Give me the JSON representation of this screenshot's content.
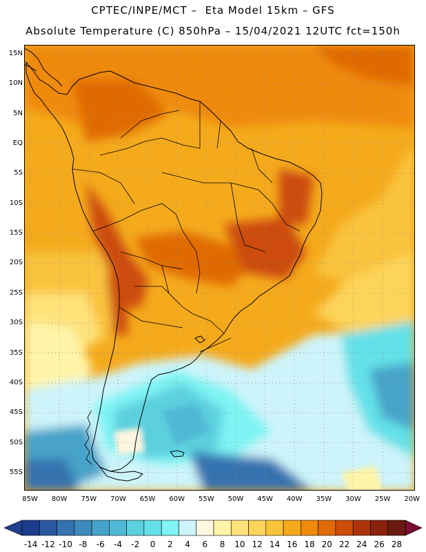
{
  "title": {
    "line1": "CPTEC/INPE/MCT –  Eta Model 15km – GFS",
    "line2": "Absolute Temperature (C) 850hPa – 15/04/2021 12UTC fct=150h"
  },
  "map": {
    "lat_labels": [
      "15N",
      "10N",
      "5N",
      "EQ",
      "5S",
      "10S",
      "15S",
      "20S",
      "25S",
      "30S",
      "35S",
      "40S",
      "45S",
      "50S",
      "55S"
    ],
    "lon_labels": [
      "85W",
      "80W",
      "75W",
      "70W",
      "65W",
      "60W",
      "55W",
      "50W",
      "45W",
      "40W",
      "35W",
      "30W",
      "25W",
      "20W"
    ],
    "lat_range": [
      16.5,
      -58
    ],
    "lon_range": [
      -86,
      -19.5
    ],
    "grid_lines": true
  },
  "colorbar": {
    "labels": [
      "-14",
      "-12",
      "-10",
      "-8",
      "-6",
      "-4",
      "-2",
      "0",
      "2",
      "4",
      "6",
      "8",
      "10",
      "12",
      "14",
      "16",
      "18",
      "20",
      "22",
      "24",
      "26",
      "28"
    ],
    "colors": [
      "#1e3c8c",
      "#2a58a0",
      "#3472b0",
      "#3d8abd",
      "#46a3c9",
      "#4fb9d5",
      "#5cd0df",
      "#64e1e8",
      "#7ef4f4",
      "#cdf4fa",
      "#fff6e0",
      "#fff4a8",
      "#ffe27a",
      "#fdd45a",
      "#f9c33c",
      "#f5aa1c",
      "#ef8a0a",
      "#e06a06",
      "#cc4c08",
      "#ab340a",
      "#8a220c",
      "#6a1a10"
    ],
    "low_color": "#233e8e",
    "high_color": "#7a0c30"
  }
}
